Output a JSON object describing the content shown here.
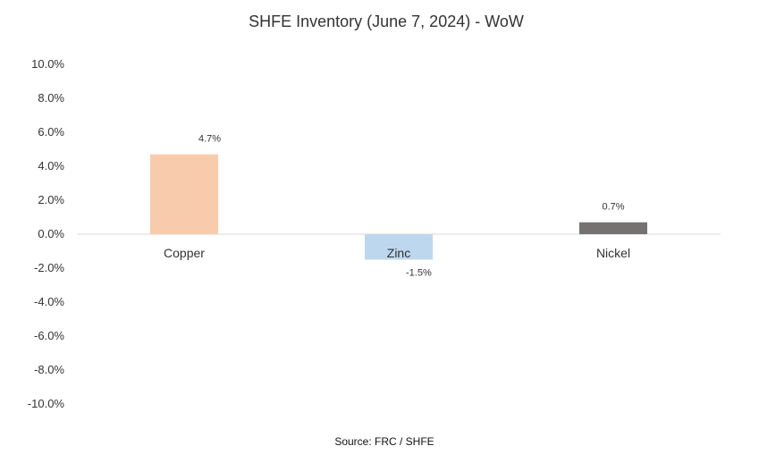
{
  "chart_data": {
    "type": "bar",
    "title": "SHFE Inventory (June 7, 2024) - WoW",
    "categories": [
      "Copper",
      "Zinc",
      "Nickel"
    ],
    "values": [
      4.7,
      -1.5,
      0.7
    ],
    "data_labels": [
      "4.7%",
      "-1.5%",
      "0.7%"
    ],
    "bar_colors": [
      "#f8cbad",
      "#bdd7ee",
      "#767171"
    ],
    "ylim": [
      -10,
      10
    ],
    "yticks": [
      10,
      8,
      6,
      4,
      2,
      0,
      -2,
      -4,
      -6,
      -8,
      -10
    ],
    "ytick_labels": [
      "10.0%",
      "8.0%",
      "6.0%",
      "4.0%",
      "2.0%",
      "0.0%",
      "-2.0%",
      "-4.0%",
      "-6.0%",
      "-8.0%",
      "-10.0%"
    ],
    "grid": false,
    "legend": "none",
    "xlabel": "",
    "ylabel": "",
    "source": "Source: FRC / SHFE"
  }
}
